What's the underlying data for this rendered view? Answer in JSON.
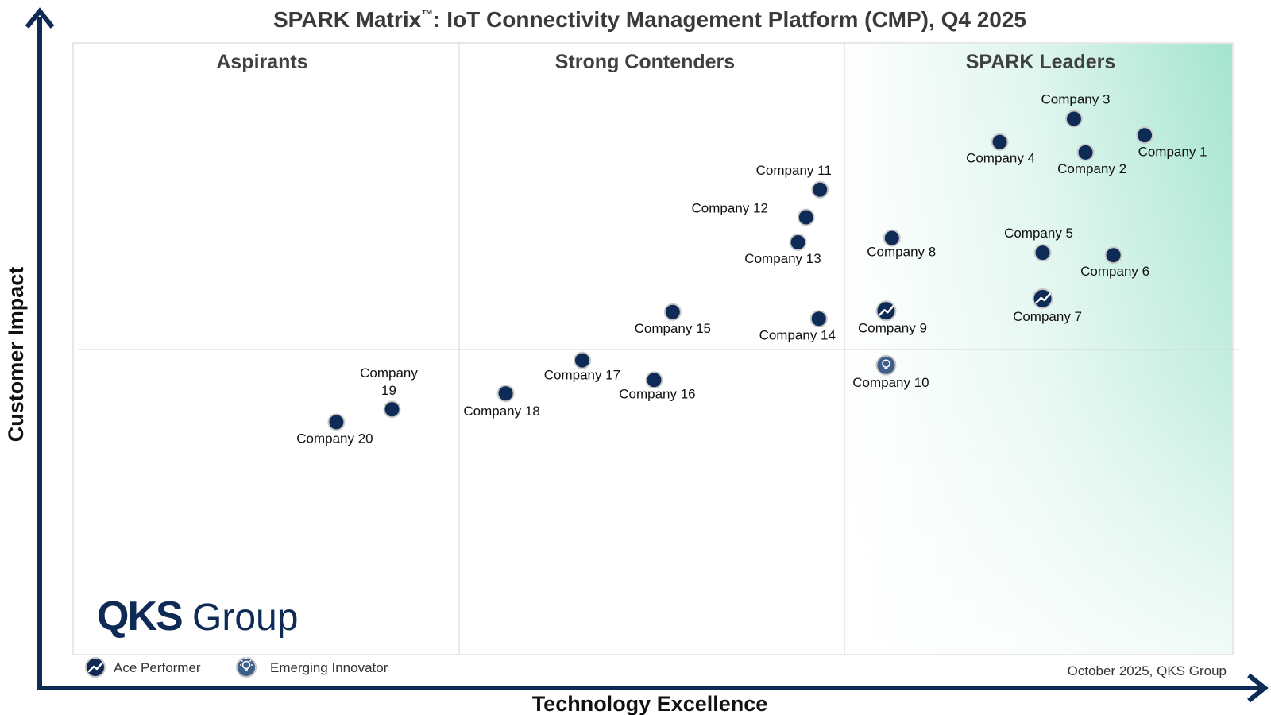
{
  "chart_data": {
    "type": "scatter",
    "title_main": "SPARK Matrix",
    "title_tm": "™",
    "title_rest": ": IoT Connectivity Management Platform (CMP), Q4  2025",
    "xlabel": "Technology Excellence",
    "ylabel": "Customer Impact",
    "quadrants": [
      "Aspirants",
      "Strong Contenders",
      "SPARK Leaders"
    ],
    "xlim": [
      0,
      100
    ],
    "ylim": [
      0,
      100
    ],
    "grid": false,
    "points": [
      {
        "name": "Company 1",
        "x": 92.4,
        "y": 84.9,
        "badge": "none"
      },
      {
        "name": "Company 2",
        "x": 87.3,
        "y": 82.1,
        "badge": "none"
      },
      {
        "name": "Company 3",
        "x": 86.3,
        "y": 87.6,
        "badge": "none"
      },
      {
        "name": "Company 4",
        "x": 79.9,
        "y": 83.8,
        "badge": "none"
      },
      {
        "name": "Company 5",
        "x": 83.6,
        "y": 65.7,
        "badge": "none"
      },
      {
        "name": "Company 6",
        "x": 89.7,
        "y": 65.3,
        "badge": "none"
      },
      {
        "name": "Company 7",
        "x": 83.6,
        "y": 58.2,
        "badge": "ace"
      },
      {
        "name": "Company 8",
        "x": 70.6,
        "y": 68.1,
        "badge": "none"
      },
      {
        "name": "Company 9",
        "x": 70.1,
        "y": 56.2,
        "badge": "ace"
      },
      {
        "name": "Company 10",
        "x": 70.1,
        "y": 47.3,
        "badge": "innovator"
      },
      {
        "name": "Company 11",
        "x": 64.4,
        "y": 76.0,
        "badge": "none"
      },
      {
        "name": "Company 12",
        "x": 63.2,
        "y": 71.5,
        "badge": "none"
      },
      {
        "name": "Company 13",
        "x": 62.5,
        "y": 67.4,
        "badge": "none"
      },
      {
        "name": "Company 14",
        "x": 64.3,
        "y": 54.9,
        "badge": "none"
      },
      {
        "name": "Company 15",
        "x": 51.7,
        "y": 56.0,
        "badge": "none"
      },
      {
        "name": "Company 16",
        "x": 50.1,
        "y": 44.9,
        "badge": "none"
      },
      {
        "name": "Company 17",
        "x": 43.9,
        "y": 48.1,
        "badge": "none"
      },
      {
        "name": "Company 18",
        "x": 37.3,
        "y": 42.7,
        "badge": "none"
      },
      {
        "name": "Company 19",
        "x": 27.5,
        "y": 40.1,
        "badge": "none"
      },
      {
        "name": "Company 20",
        "x": 22.7,
        "y": 38.0,
        "badge": "none"
      }
    ],
    "legend": [
      {
        "badge": "ace",
        "label": "Ace Performer"
      },
      {
        "badge": "innovator",
        "label": "Emerging Innovator"
      }
    ],
    "source_note": "October 2025, QKS Group",
    "logo_text_bold": "QKS",
    "logo_text": "Group"
  },
  "colors": {
    "marker": "#0d2b55",
    "axis": "#0d2b55",
    "leader_gradient": "#9fe3cc",
    "innovator": "#3d5f8a"
  },
  "icons": {
    "ace": "trend-up-icon",
    "innovator": "lightbulb-icon"
  }
}
